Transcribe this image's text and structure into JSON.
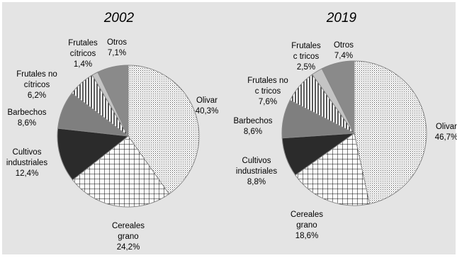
{
  "chart_data": [
    {
      "type": "pie",
      "title": "2002",
      "unit": "%",
      "slices": [
        {
          "name": "Olivar",
          "value": 40.3,
          "value_label": "40,3%"
        },
        {
          "name": "Cereales grano",
          "value": 24.2,
          "value_label": "24,2%"
        },
        {
          "name": "Cultivos industriales",
          "value": 12.4,
          "value_label": "12,4%"
        },
        {
          "name": "Barbechos",
          "value": 8.6,
          "value_label": "8,6%"
        },
        {
          "name": "Frutales no cítricos",
          "value": 6.2,
          "value_label": "6,2%"
        },
        {
          "name": "Frutales cítricos",
          "value": 1.4,
          "value_label": "1,4%"
        },
        {
          "name": "Otros",
          "value": 7.1,
          "value_label": "7,1%"
        }
      ]
    },
    {
      "type": "pie",
      "title": "2019",
      "unit": "%",
      "slices": [
        {
          "name": "Olivar",
          "value": 46.7,
          "value_label": "46,7%"
        },
        {
          "name": "Cereales grano",
          "value": 18.6,
          "value_label": "18,6%"
        },
        {
          "name": "Cultivos industriales",
          "value": 8.8,
          "value_label": "8,8%"
        },
        {
          "name": "Barbechos",
          "value": 8.6,
          "value_label": "8,6%"
        },
        {
          "name": "Frutales no c tricos",
          "value": 7.6,
          "value_label": "7,6%"
        },
        {
          "name": "Frutales c tricos",
          "value": 2.5,
          "value_label": "2,5%"
        },
        {
          "name": "Otros",
          "value": 7.4,
          "value_label": "7,4%"
        }
      ]
    }
  ],
  "style": {
    "background": "#ffffff",
    "plot_area": "#e4e4e4",
    "outline": "#888888",
    "slice_fills": [
      "pattern-dots",
      "pattern-grid",
      "#2b2b2b",
      "#7f7f7f",
      "pattern-vertical-lines",
      "#c4c4c4",
      "#8a8a8a"
    ]
  }
}
